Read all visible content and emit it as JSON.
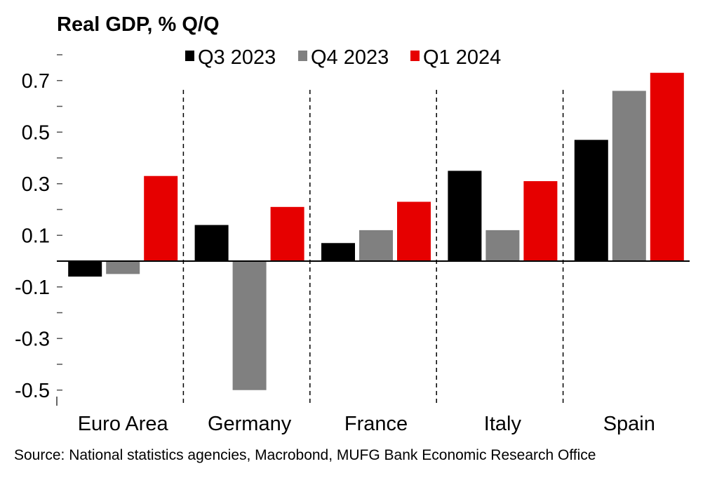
{
  "chart_data": {
    "type": "bar",
    "title": "Real GDP, % Q/Q",
    "xlabel": "",
    "ylabel": "",
    "categories": [
      "Euro Area",
      "Germany",
      "France",
      "Italy",
      "Spain"
    ],
    "series": [
      {
        "name": "Q3 2023",
        "color": "#000000",
        "values": [
          -0.06,
          0.14,
          0.07,
          0.35,
          0.47
        ]
      },
      {
        "name": "Q4 2023",
        "color": "#808080",
        "values": [
          -0.05,
          -0.5,
          0.12,
          0.12,
          0.66
        ]
      },
      {
        "name": "Q1 2024",
        "color": "#e60000",
        "values": [
          0.33,
          0.21,
          0.23,
          0.31,
          0.73
        ]
      }
    ],
    "ylim": [
      -0.55,
      0.8
    ],
    "yticks_labeled": [
      "0.7",
      "0.5",
      "0.3",
      "0.1",
      "-0.1",
      "-0.3",
      "-0.5"
    ],
    "ytick_values": [
      0.7,
      0.5,
      0.3,
      0.1,
      -0.1,
      -0.3,
      -0.5
    ],
    "yticks_minor": [
      0.8,
      0.6,
      0.4,
      0.2,
      0.0,
      -0.2,
      -0.4
    ],
    "grid": false,
    "legend_position": "top",
    "category_separators": "dashed",
    "source": "Source: National statistics agencies, Macrobond, MUFG Bank Economic Research Office"
  }
}
